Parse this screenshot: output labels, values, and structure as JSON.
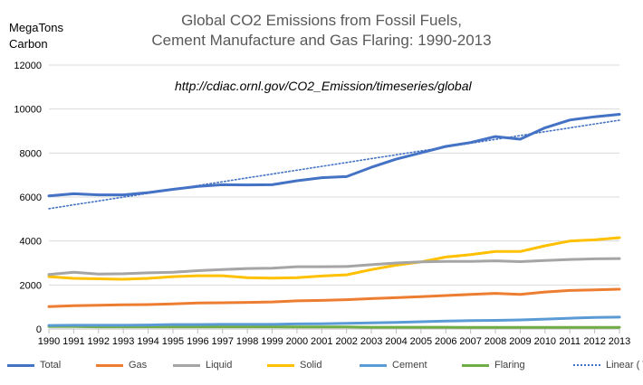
{
  "chart_data": {
    "type": "line",
    "title_lines": [
      "Global CO2 Emissions from Fossil Fuels,",
      "Cement Manufacture and Gas Flaring: 1990-2013"
    ],
    "ylabel_lines": [
      "MegaTons",
      "Carbon"
    ],
    "annotation": "http://cdiac.ornl.gov/CO2_Emission/timeseries/global",
    "x": [
      1990,
      1991,
      1992,
      1993,
      1994,
      1995,
      1996,
      1997,
      1998,
      1999,
      2000,
      2001,
      2002,
      2003,
      2004,
      2005,
      2006,
      2007,
      2008,
      2009,
      2010,
      2011,
      2012,
      2013
    ],
    "ylim": [
      0,
      12000
    ],
    "yticks": [
      0,
      2000,
      4000,
      6000,
      8000,
      10000,
      12000
    ],
    "grid": true,
    "legend_position": "bottom",
    "series": [
      {
        "name": "Total",
        "color": "#4472C4",
        "style": "solid",
        "values": [
          6050,
          6150,
          6100,
          6100,
          6200,
          6350,
          6480,
          6560,
          6550,
          6560,
          6740,
          6880,
          6930,
          7350,
          7720,
          8010,
          8300,
          8480,
          8750,
          8630,
          9150,
          9500,
          9650,
          9760
        ]
      },
      {
        "name": "Gas",
        "color": "#ED7D31",
        "style": "solid",
        "values": [
          1020,
          1060,
          1080,
          1100,
          1110,
          1140,
          1180,
          1190,
          1210,
          1230,
          1280,
          1300,
          1330,
          1380,
          1420,
          1470,
          1520,
          1570,
          1620,
          1570,
          1680,
          1750,
          1780,
          1810
        ]
      },
      {
        "name": "Liquid",
        "color": "#A5A5A5",
        "style": "solid",
        "values": [
          2480,
          2580,
          2500,
          2510,
          2550,
          2580,
          2650,
          2700,
          2750,
          2760,
          2830,
          2830,
          2840,
          2920,
          3000,
          3050,
          3070,
          3070,
          3100,
          3060,
          3110,
          3160,
          3190,
          3200
        ]
      },
      {
        "name": "Solid",
        "color": "#FFC000",
        "style": "solid",
        "values": [
          2380,
          2300,
          2280,
          2260,
          2300,
          2380,
          2420,
          2420,
          2330,
          2310,
          2330,
          2410,
          2460,
          2700,
          2900,
          3050,
          3270,
          3380,
          3520,
          3520,
          3780,
          4000,
          4050,
          4150
        ]
      },
      {
        "name": "Cement",
        "color": "#5B9BD5",
        "style": "solid",
        "values": [
          160,
          170,
          170,
          170,
          180,
          200,
          200,
          210,
          210,
          210,
          230,
          240,
          260,
          280,
          300,
          330,
          360,
          380,
          390,
          410,
          450,
          490,
          520,
          540
        ]
      },
      {
        "name": "Flaring",
        "color": "#70AD47",
        "style": "solid",
        "values": [
          110,
          110,
          100,
          100,
          100,
          100,
          100,
          100,
          100,
          100,
          90,
          90,
          90,
          80,
          80,
          80,
          80,
          70,
          70,
          70,
          70,
          70,
          70,
          70
        ]
      },
      {
        "name": "Linear ( Total)",
        "color": "#4472C4",
        "style": "dotted",
        "values": [
          5470,
          5645,
          5820,
          5995,
          6170,
          6345,
          6520,
          6695,
          6870,
          7045,
          7220,
          7395,
          7570,
          7745,
          7920,
          8095,
          8270,
          8445,
          8620,
          8795,
          8970,
          9145,
          9320,
          9495
        ]
      }
    ]
  }
}
